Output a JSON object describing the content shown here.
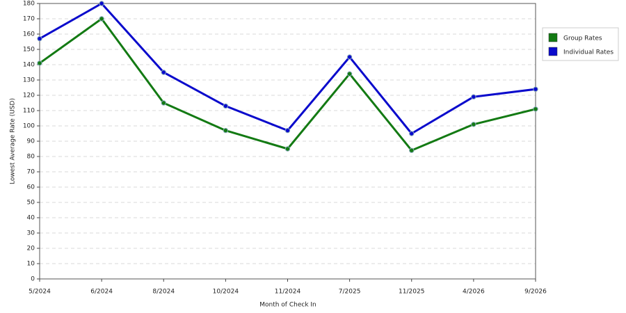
{
  "chart_data": {
    "type": "line",
    "x_label": "Month of Check In",
    "y_label": "Lowest Average Rate (USD)",
    "categories": [
      "5/2024",
      "6/2024",
      "8/2024",
      "10/2024",
      "11/2024",
      "7/2025",
      "11/2025",
      "4/2026",
      "9/2026"
    ],
    "series": [
      {
        "name": "Group Rates",
        "color": "#137a13",
        "values": [
          141,
          170,
          115,
          97,
          85,
          134,
          84,
          101,
          111
        ]
      },
      {
        "name": "Individual Rates",
        "color": "#0a0acc",
        "values": [
          157,
          180,
          135,
          113,
          97,
          145,
          95,
          119,
          124
        ]
      }
    ],
    "ylim": [
      0,
      180
    ],
    "yticks": [
      0,
      10,
      20,
      30,
      40,
      50,
      60,
      70,
      80,
      90,
      100,
      110,
      120,
      130,
      140,
      150,
      160,
      170,
      180
    ],
    "grid": true,
    "legend": "right"
  }
}
